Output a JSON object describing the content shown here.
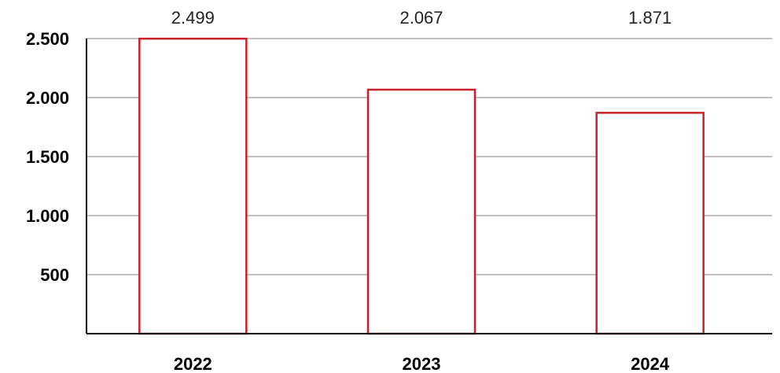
{
  "chart_data": {
    "type": "bar",
    "categories": [
      "2022",
      "2023",
      "2024"
    ],
    "values": [
      2499,
      2067,
      1871
    ],
    "value_labels": [
      "2.499",
      "2.067",
      "1.871"
    ],
    "yticks": [
      500,
      1000,
      1500,
      2000,
      2500
    ],
    "ytick_labels": [
      "500",
      "1.000",
      "1.500",
      "2.000",
      "2.500"
    ],
    "ylim": [
      0,
      2500
    ],
    "grid": true,
    "legend": "none",
    "colors": {
      "bar_outline": "#c8202a",
      "bar_fill": "#ffffff"
    }
  }
}
